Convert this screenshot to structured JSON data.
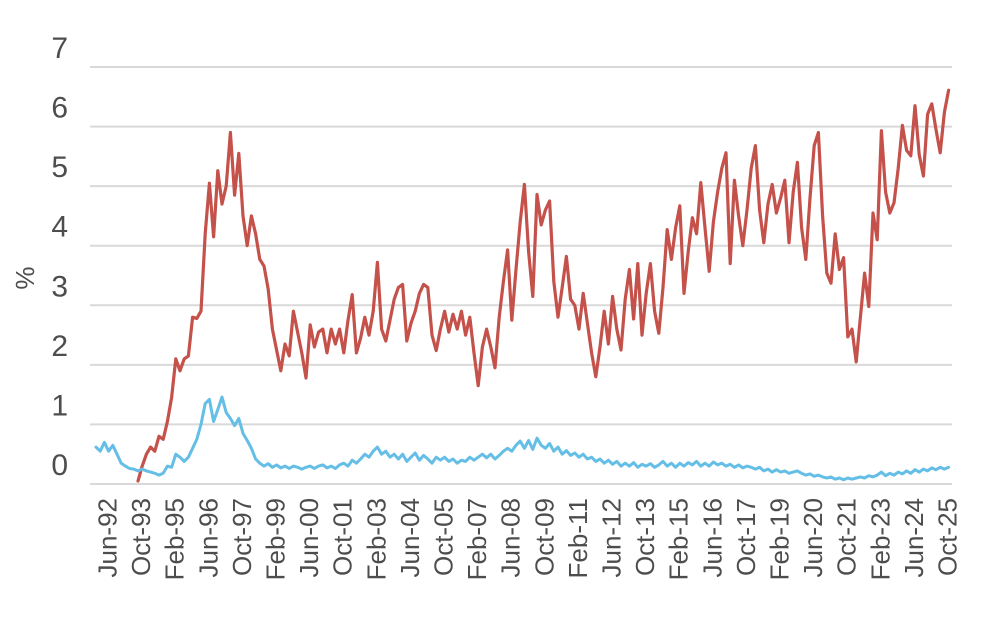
{
  "chart_data": {
    "type": "line",
    "title": "",
    "ylabel": "%",
    "xlabel": "",
    "grid": true,
    "legend": "none",
    "ylim": [
      0,
      7.6
    ],
    "y_ticks": [
      0,
      1,
      2,
      3,
      4,
      5,
      6,
      7
    ],
    "x_axis": {
      "unit": "month-index (0 = Jan-1992, monthly spacing, labels every 16 months)",
      "tick_month_indices": [
        5,
        21,
        37,
        53,
        69,
        85,
        101,
        117,
        133,
        149,
        165,
        181,
        197,
        213,
        229,
        245,
        261,
        277,
        293,
        309,
        325,
        341,
        357,
        373,
        389,
        405
      ],
      "tick_labels": [
        "Jun-92",
        "Oct-93",
        "Feb-95",
        "Jun-96",
        "Oct-97",
        "Feb-99",
        "Jun-00",
        "Oct-01",
        "Feb-03",
        "Jun-04",
        "Oct-05",
        "Feb-07",
        "Jun-08",
        "Oct-09",
        "Feb-11",
        "Jun-12",
        "Oct-13",
        "Feb-15",
        "Jun-16",
        "Oct-17",
        "Feb-19",
        "Jun-20",
        "Oct-21",
        "Feb-23",
        "Jun-24",
        "Oct-25"
      ]
    },
    "series": [
      {
        "name": "red-line",
        "color": "#c5514b",
        "stroke_width": 3.2,
        "start_month_index": 20,
        "month_step": 2,
        "values": [
          0.05,
          0.3,
          0.5,
          0.62,
          0.55,
          0.8,
          0.75,
          1.05,
          1.45,
          2.1,
          1.9,
          2.1,
          2.15,
          2.8,
          2.78,
          2.9,
          4.2,
          5.05,
          4.15,
          5.26,
          4.7,
          5.0,
          5.9,
          4.85,
          5.55,
          4.5,
          4.0,
          4.5,
          4.2,
          3.77,
          3.66,
          3.27,
          2.6,
          2.25,
          1.9,
          2.35,
          2.15,
          2.9,
          2.55,
          2.2,
          1.78,
          2.67,
          2.3,
          2.55,
          2.6,
          2.2,
          2.6,
          2.35,
          2.6,
          2.2,
          2.75,
          3.18,
          2.2,
          2.45,
          2.8,
          2.5,
          2.9,
          3.72,
          2.6,
          2.4,
          2.75,
          3.1,
          3.3,
          3.35,
          2.4,
          2.7,
          2.9,
          3.2,
          3.35,
          3.3,
          2.5,
          2.24,
          2.6,
          2.9,
          2.55,
          2.85,
          2.6,
          2.9,
          2.5,
          2.8,
          2.2,
          1.65,
          2.3,
          2.6,
          2.3,
          1.95,
          2.8,
          3.4,
          3.93,
          2.75,
          3.6,
          4.4,
          5.03,
          3.9,
          3.15,
          4.86,
          4.35,
          4.6,
          4.75,
          3.4,
          2.8,
          3.3,
          3.82,
          3.1,
          3.0,
          2.6,
          3.2,
          2.7,
          2.2,
          1.8,
          2.3,
          2.9,
          2.35,
          3.15,
          2.6,
          2.25,
          3.1,
          3.6,
          2.77,
          3.7,
          2.5,
          3.2,
          3.7,
          2.9,
          2.53,
          3.3,
          4.27,
          3.77,
          4.3,
          4.67,
          3.2,
          3.9,
          4.47,
          4.2,
          5.06,
          4.3,
          3.57,
          4.4,
          4.9,
          5.3,
          5.56,
          3.7,
          5.1,
          4.5,
          4.0,
          4.6,
          5.3,
          5.68,
          4.6,
          4.05,
          4.7,
          5.03,
          4.55,
          4.8,
          5.1,
          4.05,
          4.9,
          5.4,
          4.3,
          3.77,
          4.8,
          5.68,
          5.9,
          4.5,
          3.54,
          3.37,
          4.2,
          3.6,
          3.8,
          2.47,
          2.6,
          2.05,
          2.8,
          3.54,
          2.98,
          4.55,
          4.1,
          5.93,
          4.9,
          4.55,
          4.72,
          5.3,
          6.02,
          5.6,
          5.51,
          6.35,
          5.53,
          5.17,
          6.21,
          6.38,
          5.95,
          5.56,
          6.24,
          6.61
        ]
      },
      {
        "name": "blue-line",
        "color": "#64bee6",
        "stroke_width": 3,
        "start_month_index": 0,
        "month_step": 2,
        "values": [
          0.62,
          0.55,
          0.7,
          0.55,
          0.65,
          0.5,
          0.35,
          0.3,
          0.26,
          0.25,
          0.22,
          0.25,
          0.22,
          0.2,
          0.18,
          0.15,
          0.18,
          0.3,
          0.28,
          0.5,
          0.45,
          0.38,
          0.45,
          0.6,
          0.75,
          1.0,
          1.35,
          1.42,
          1.05,
          1.25,
          1.46,
          1.2,
          1.1,
          0.98,
          1.1,
          0.85,
          0.73,
          0.6,
          0.42,
          0.35,
          0.3,
          0.34,
          0.28,
          0.32,
          0.27,
          0.3,
          0.26,
          0.3,
          0.28,
          0.25,
          0.28,
          0.3,
          0.26,
          0.3,
          0.32,
          0.27,
          0.3,
          0.26,
          0.32,
          0.35,
          0.3,
          0.4,
          0.35,
          0.42,
          0.5,
          0.45,
          0.55,
          0.62,
          0.5,
          0.55,
          0.45,
          0.5,
          0.42,
          0.5,
          0.38,
          0.45,
          0.52,
          0.4,
          0.48,
          0.42,
          0.35,
          0.45,
          0.4,
          0.45,
          0.38,
          0.42,
          0.35,
          0.4,
          0.38,
          0.45,
          0.4,
          0.45,
          0.5,
          0.44,
          0.5,
          0.42,
          0.48,
          0.55,
          0.6,
          0.55,
          0.65,
          0.72,
          0.6,
          0.73,
          0.58,
          0.77,
          0.65,
          0.6,
          0.68,
          0.55,
          0.62,
          0.5,
          0.56,
          0.48,
          0.52,
          0.45,
          0.5,
          0.42,
          0.45,
          0.38,
          0.42,
          0.35,
          0.4,
          0.33,
          0.38,
          0.3,
          0.35,
          0.3,
          0.36,
          0.28,
          0.33,
          0.3,
          0.34,
          0.28,
          0.32,
          0.38,
          0.3,
          0.35,
          0.28,
          0.35,
          0.3,
          0.36,
          0.32,
          0.38,
          0.3,
          0.35,
          0.3,
          0.37,
          0.32,
          0.35,
          0.3,
          0.33,
          0.28,
          0.32,
          0.27,
          0.3,
          0.28,
          0.25,
          0.28,
          0.22,
          0.25,
          0.2,
          0.24,
          0.2,
          0.22,
          0.18,
          0.2,
          0.22,
          0.18,
          0.15,
          0.17,
          0.13,
          0.15,
          0.12,
          0.1,
          0.12,
          0.08,
          0.1,
          0.07,
          0.1,
          0.08,
          0.1,
          0.12,
          0.1,
          0.14,
          0.12,
          0.15,
          0.2,
          0.14,
          0.18,
          0.15,
          0.2,
          0.17,
          0.22,
          0.18,
          0.24,
          0.2,
          0.25,
          0.22,
          0.27,
          0.24,
          0.28,
          0.25,
          0.28
        ]
      }
    ],
    "style": {
      "gridline_color": "#d9d9d9",
      "tick_text_color": "#4d4d4d",
      "background_color": "#ffffff"
    }
  }
}
